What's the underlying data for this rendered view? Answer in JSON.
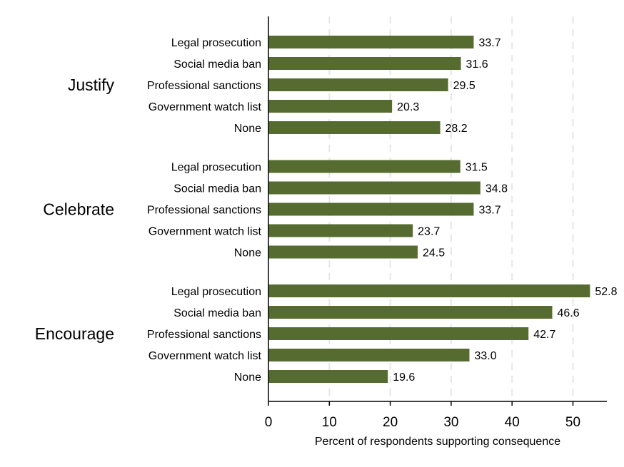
{
  "chart_data": {
    "type": "bar",
    "orientation": "horizontal",
    "xlabel": "Percent of respondents supporting consequence",
    "xlim": [
      0,
      55
    ],
    "xticks": [
      0,
      10,
      20,
      30,
      40,
      50
    ],
    "xtick_labels": [
      "0",
      "10",
      "20",
      "30",
      "40",
      "50"
    ],
    "gridlines": "vertical dashed",
    "bar_color": "#556B2F",
    "grid_color": "#e6e6e6",
    "groups": [
      {
        "name": "Justify",
        "categories": [
          "Legal prosecution",
          "Social media ban",
          "Professional sanctions",
          "Government watch list",
          "None"
        ],
        "values": [
          33.7,
          31.6,
          29.5,
          20.3,
          28.2
        ],
        "value_labels": [
          "33.7",
          "31.6",
          "29.5",
          "20.3",
          "28.2"
        ]
      },
      {
        "name": "Celebrate",
        "categories": [
          "Legal prosecution",
          "Social media ban",
          "Professional sanctions",
          "Government watch list",
          "None"
        ],
        "values": [
          31.5,
          34.8,
          33.7,
          23.7,
          24.5
        ],
        "value_labels": [
          "31.5",
          "34.8",
          "33.7",
          "23.7",
          "24.5"
        ]
      },
      {
        "name": "Encourage",
        "categories": [
          "Legal prosecution",
          "Social media ban",
          "Professional sanctions",
          "Government watch list",
          "None"
        ],
        "values": [
          52.8,
          46.6,
          42.7,
          33.0,
          19.6
        ],
        "value_labels": [
          "52.8",
          "46.6",
          "42.7",
          "33.0",
          "19.6"
        ]
      }
    ]
  }
}
